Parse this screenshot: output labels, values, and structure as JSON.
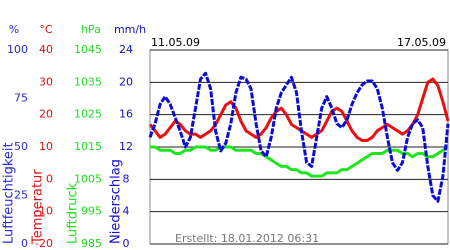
{
  "chart_data": {
    "type": "line",
    "start_label": "11.05.09",
    "end_label": "17.05.09",
    "annotation": "Erstellt: 18.01.2012 06:31",
    "grid": true,
    "grid_axis": 1,
    "axes": [
      {
        "unit": "%",
        "title": "Luftfeuchtigkeit",
        "color": "#2a2ad0",
        "lim": [
          0,
          100
        ],
        "ticks": [
          0,
          25,
          50,
          75,
          100
        ]
      },
      {
        "unit": "°C",
        "title": "Temperatur",
        "color": "#e01010",
        "lim": [
          -20,
          40
        ],
        "ticks": [
          -20,
          -10,
          0,
          10,
          20,
          30,
          40
        ]
      },
      {
        "unit": "hPa",
        "title": "Luftdruck",
        "color": "#22dd22",
        "lim": [
          985,
          1045
        ],
        "ticks": [
          985,
          995,
          1005,
          1015,
          1025,
          1035,
          1045
        ]
      },
      {
        "unit": "mm/h",
        "title": "Niederschlag",
        "color": "#1010c8",
        "lim": [
          0,
          24
        ],
        "ticks": [
          0,
          4,
          8,
          12,
          16,
          20,
          24
        ]
      }
    ],
    "series": [
      {
        "axis": 2,
        "color": "#1ee61e",
        "values": [
          1015,
          1015,
          1014,
          1014,
          1014,
          1013,
          1013,
          1014,
          1014,
          1015,
          1015,
          1015,
          1014,
          1014,
          1015,
          1015,
          1015,
          1014,
          1014,
          1014,
          1014,
          1013,
          1013,
          1012,
          1011,
          1010,
          1009,
          1009,
          1008,
          1008,
          1007,
          1007,
          1006,
          1006,
          1006,
          1007,
          1007,
          1007,
          1008,
          1008,
          1009,
          1010,
          1011,
          1012,
          1013,
          1013,
          1013,
          1014,
          1014,
          1014,
          1013,
          1013,
          1012,
          1013,
          1013,
          1012,
          1012,
          1013,
          1014,
          1015
        ]
      },
      {
        "axis": 1,
        "color": "#e81010",
        "values": [
          17,
          15,
          13,
          14,
          16,
          18,
          17,
          15,
          14,
          14,
          13,
          14,
          15,
          17,
          20,
          23,
          24,
          22,
          18,
          15,
          14,
          13,
          14,
          16,
          19,
          21,
          22,
          20,
          17,
          16,
          15,
          14,
          13,
          14,
          15,
          18,
          21,
          22,
          21,
          18,
          15,
          13,
          12,
          12,
          13,
          15,
          16,
          17,
          16,
          15,
          14,
          15,
          17,
          20,
          25,
          30,
          31,
          29,
          24,
          18
        ]
      },
      {
        "axis": 0,
        "color": "#0b0bd8",
        "values": [
          55,
          62,
          72,
          76,
          72,
          65,
          58,
          50,
          55,
          70,
          85,
          88,
          80,
          58,
          48,
          52,
          62,
          78,
          86,
          85,
          80,
          62,
          48,
          45,
          55,
          70,
          78,
          82,
          86,
          78,
          58,
          42,
          40,
          55,
          70,
          76,
          70,
          62,
          60,
          64,
          72,
          78,
          82,
          84,
          84,
          80,
          70,
          55,
          42,
          38,
          42,
          55,
          62,
          64,
          60,
          40,
          25,
          22,
          35,
          62
        ]
      }
    ]
  }
}
